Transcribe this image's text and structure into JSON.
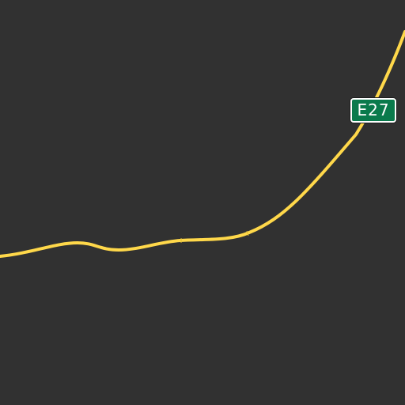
{
  "map": {
    "background_color": "#313131",
    "road": {
      "type": "highway",
      "color": "#ffd84a",
      "route_shield": {
        "label": "E27",
        "fill_color": "#0a7a4c",
        "text_color": "#ffffff",
        "border_color": "#ffffff"
      }
    }
  }
}
